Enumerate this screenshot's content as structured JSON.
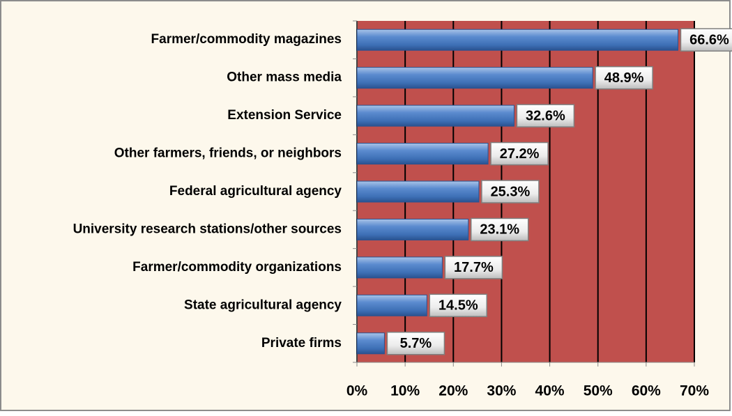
{
  "chart_data": {
    "type": "bar",
    "orientation": "horizontal",
    "categories": [
      "Farmer/commodity magazines",
      "Other mass media",
      "Extension Service",
      "Other farmers, friends, or neighbors",
      "Federal agricultural agency",
      "University research stations/other sources",
      "Farmer/commodity organizations",
      "State agricultural agency",
      "Private firms"
    ],
    "values": [
      66.6,
      48.9,
      32.6,
      27.2,
      25.3,
      23.1,
      17.7,
      14.5,
      5.7
    ],
    "value_labels": [
      "66.6%",
      "48.9%",
      "32.6%",
      "27.2%",
      "25.3%",
      "23.1%",
      "17.7%",
      "14.5%",
      "5.7%"
    ],
    "color": "#4f81bd",
    "plot_background": "#c0504d",
    "xlim": [
      0,
      70
    ],
    "xticks": [
      {
        "value": 0,
        "label": "0%"
      },
      {
        "value": 10,
        "label": "10%"
      },
      {
        "value": 20,
        "label": "20%"
      },
      {
        "value": 30,
        "label": "30%"
      },
      {
        "value": 40,
        "label": "40%"
      },
      {
        "value": 50,
        "label": "50%"
      },
      {
        "value": 60,
        "label": "60%"
      },
      {
        "value": 70,
        "label": "70%"
      }
    ],
    "grid": true
  }
}
